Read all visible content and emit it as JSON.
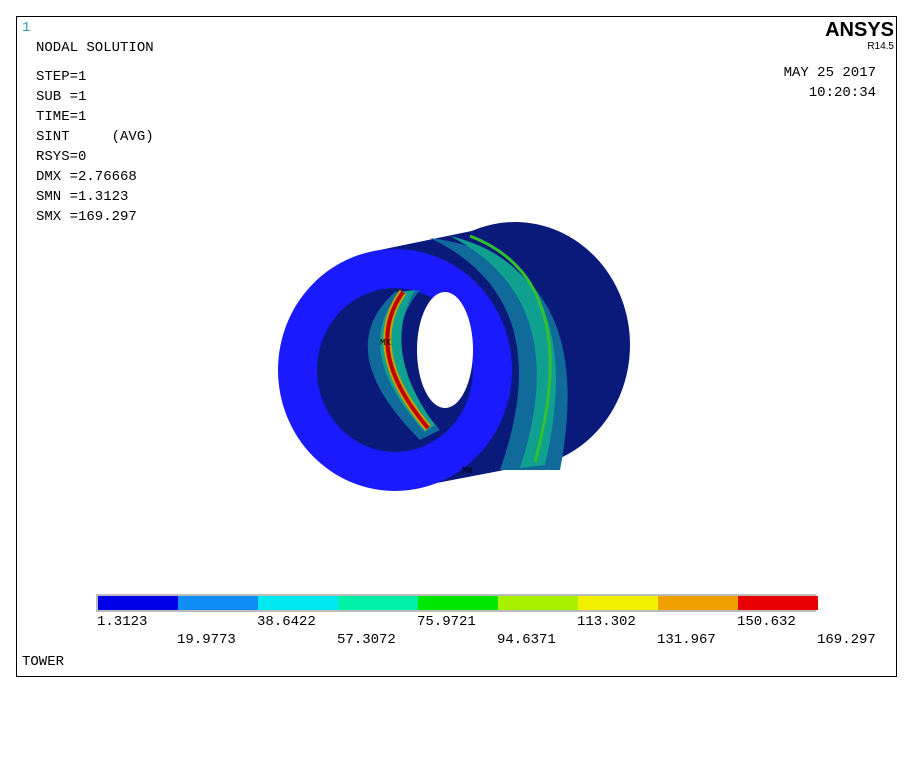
{
  "window_number": "1",
  "title": "NODAL SOLUTION",
  "info": [
    "STEP=1",
    "SUB =1",
    "TIME=1",
    "SINT     (AVG)",
    "RSYS=0",
    "DMX =2.76668",
    "SMN =1.3123",
    "SMX =169.297"
  ],
  "brand": "ANSYS",
  "version": "R14.5",
  "date": "MAY 25 2017",
  "time": "10:20:34",
  "model_labels": [
    "MX",
    "MN"
  ],
  "legend": {
    "colors": [
      "#0000e8",
      "#0f8df5",
      "#00e8f0",
      "#00f0a8",
      "#00e800",
      "#a8f000",
      "#f0f000",
      "#f0a000",
      "#e80000"
    ],
    "labels": [
      "1.3123",
      "19.9773",
      "38.6422",
      "57.3072",
      "75.9721",
      "94.6371",
      "113.302",
      "131.967",
      "150.632",
      "169.297"
    ]
  },
  "footer": "TOWER"
}
